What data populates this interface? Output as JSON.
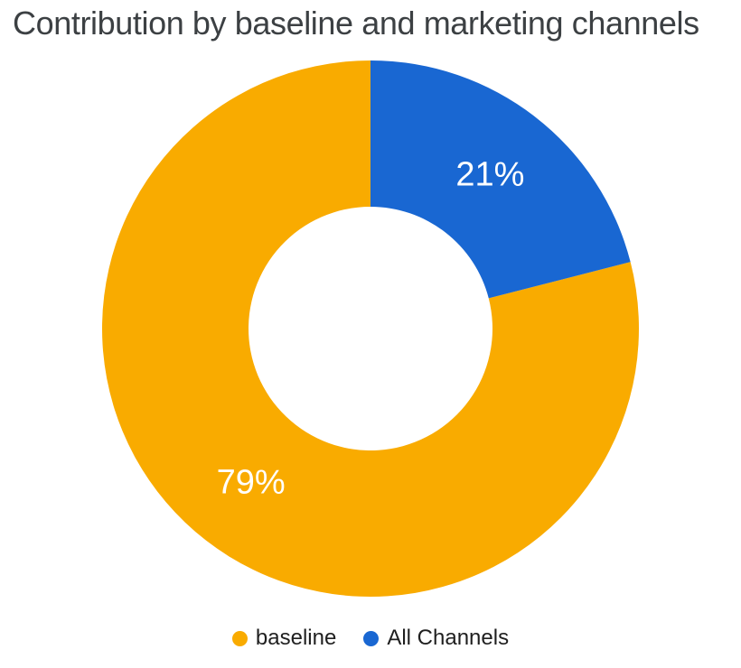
{
  "header": {
    "title": "Contribution by baseline and marketing channels"
  },
  "colors": {
    "baseline": "#F9AB00",
    "all_channels": "#1967D2",
    "title_text": "#3C4043",
    "legend_text": "#1F1F1F",
    "slice_label_text": "#FFFFFF",
    "background": "#FFFFFF"
  },
  "chart_data": {
    "type": "pie",
    "subtype": "donut",
    "title": "Contribution by baseline and marketing channels",
    "unit": "%",
    "categories": [
      "baseline",
      "All Channels"
    ],
    "values": [
      79,
      21
    ],
    "slices": [
      {
        "label": "baseline",
        "value": 79,
        "display_label": "79%",
        "color": "#F9AB00"
      },
      {
        "label": "All Channels",
        "value": 21,
        "display_label": "21%",
        "color": "#1967D2"
      }
    ],
    "layout": {
      "start_angle": "12 o'clock",
      "direction": "counterclockwise",
      "inner_radius_ratio": 0.45,
      "slice_labels": "inside mid-ring, white",
      "legend_position": "bottom-center",
      "grid": false
    }
  },
  "legend": {
    "items": [
      {
        "label": "baseline",
        "color": "#F9AB00"
      },
      {
        "label": "All Channels",
        "color": "#1967D2"
      }
    ]
  }
}
